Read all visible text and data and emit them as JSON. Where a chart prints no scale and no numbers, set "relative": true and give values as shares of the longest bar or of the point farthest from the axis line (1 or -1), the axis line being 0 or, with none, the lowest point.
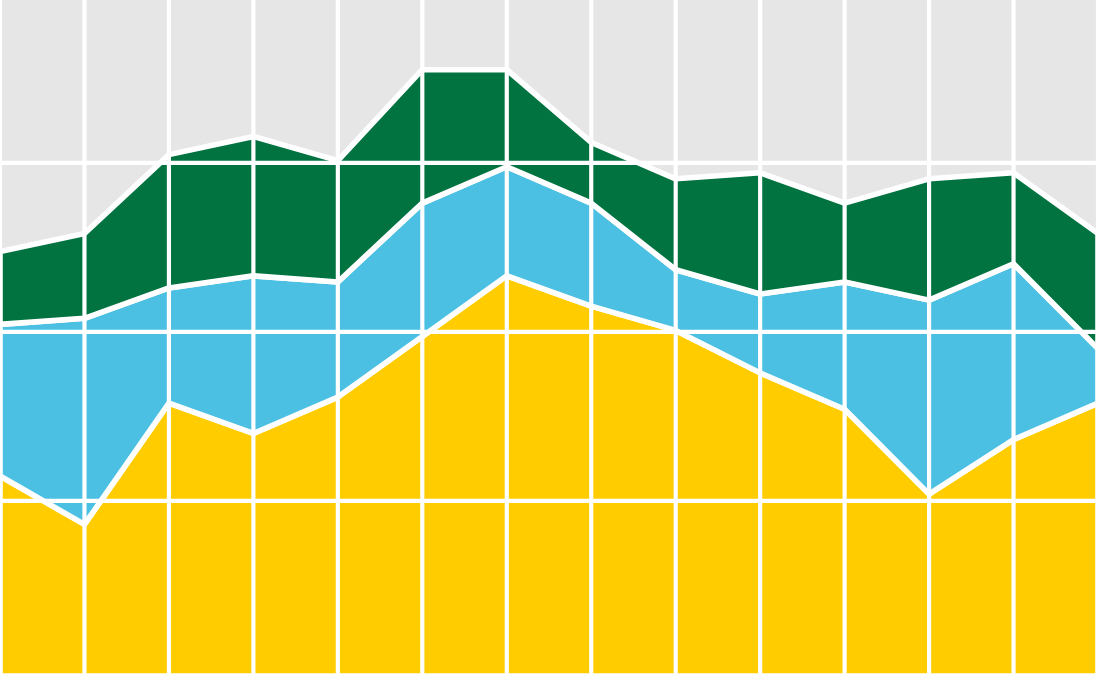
{
  "chart_data": {
    "type": "area",
    "stacked": true,
    "relative": true,
    "grid": true,
    "categories": [
      null,
      null,
      null,
      null,
      null,
      null,
      null,
      null,
      null,
      null,
      null,
      null,
      null,
      null
    ],
    "series": [
      {
        "color": "#ffcc00",
        "values": [
          0.33,
          0.25,
          0.45,
          0.4,
          0.46,
          0.56,
          0.66,
          0.61,
          0.57,
          0.5,
          0.44,
          0.3,
          0.39,
          0.45
        ]
      },
      {
        "color": "#4bc0e3",
        "values": [
          0.25,
          0.34,
          0.19,
          0.26,
          0.19,
          0.22,
          0.18,
          0.17,
          0.1,
          0.13,
          0.21,
          0.32,
          0.29,
          0.09
        ]
      },
      {
        "color": "#007340",
        "values": [
          0.12,
          0.14,
          0.22,
          0.23,
          0.2,
          0.22,
          0.16,
          0.1,
          0.15,
          0.2,
          0.13,
          0.2,
          0.15,
          0.19
        ]
      }
    ]
  }
}
